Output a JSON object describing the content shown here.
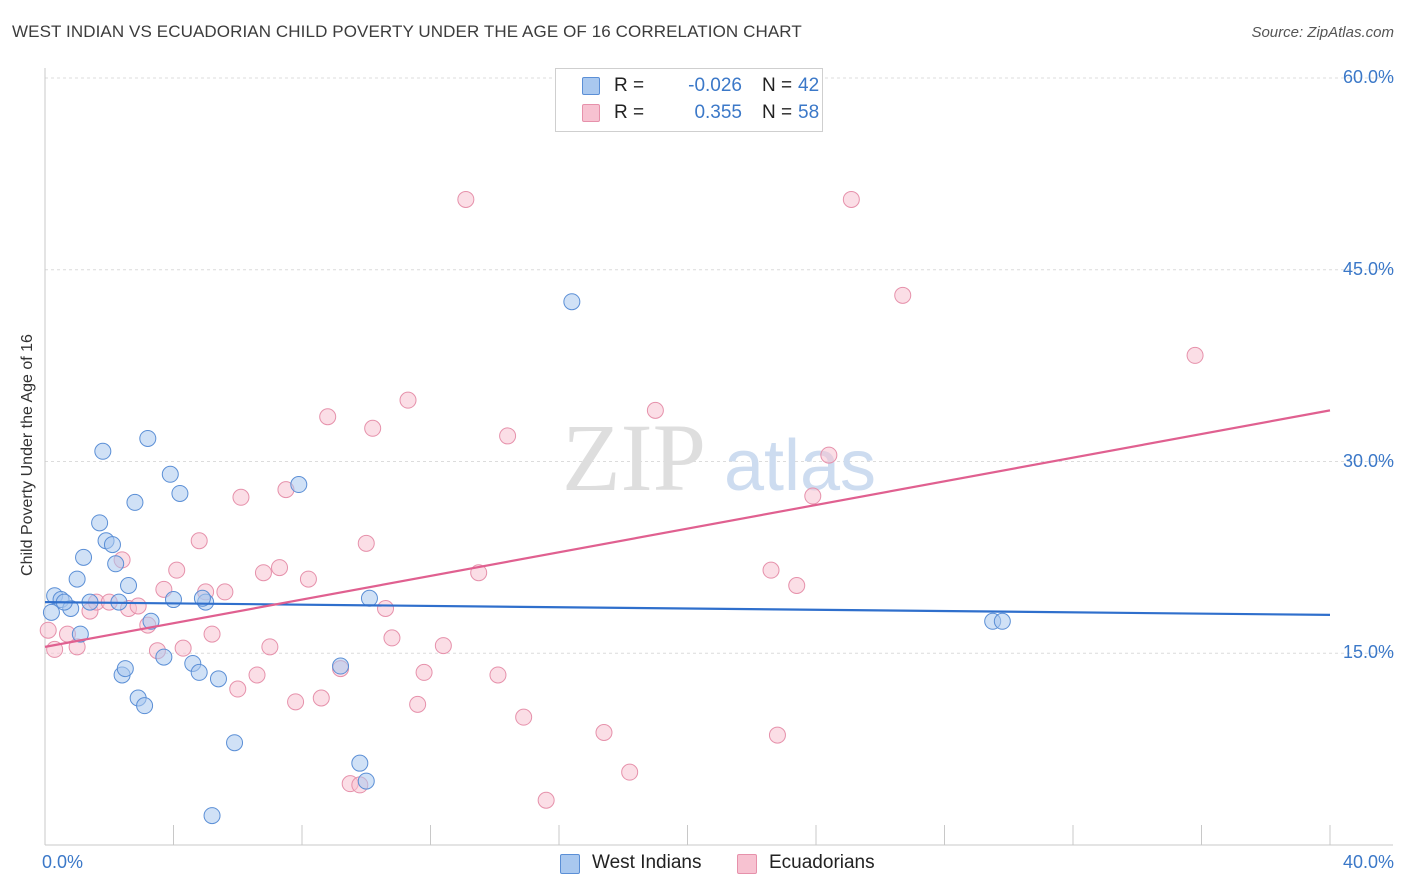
{
  "header": {
    "title": "WEST INDIAN VS ECUADORIAN CHILD POVERTY UNDER THE AGE OF 16 CORRELATION CHART",
    "source": "Source: ZipAtlas.com"
  },
  "colors": {
    "west_indians_fill": "#a9c8ef",
    "west_indians_stroke": "#5b8fd6",
    "west_indians_line": "#2f6fcc",
    "ecuadorians_fill": "#f7c2d1",
    "ecuadorians_stroke": "#e691ab",
    "ecuadorians_line": "#e06090",
    "tick_text": "#3b78c8",
    "grid": "#dcdcdc"
  },
  "watermark": {
    "part1": "ZIP",
    "part2": "atlas"
  },
  "legend": {
    "r_label": "R =",
    "n_label": "N =",
    "rows": [
      {
        "r": "-0.026",
        "n": "42"
      },
      {
        "r": "0.355",
        "n": "58"
      }
    ]
  },
  "bottom_legend": {
    "items": [
      {
        "label": "West Indians"
      },
      {
        "label": "Ecuadorians"
      }
    ]
  },
  "chart_data": {
    "type": "scatter",
    "title": "WEST INDIAN VS ECUADORIAN CHILD POVERTY UNDER THE AGE OF 16 CORRELATION CHART",
    "xlabel": "",
    "ylabel": "Child Poverty Under the Age of 16",
    "xlim": [
      0,
      40
    ],
    "ylim": [
      0,
      60
    ],
    "x_tick_labels": {
      "min": "0.0%",
      "max": "40.0%"
    },
    "y_ticks": [
      {
        "value": 60,
        "label": "60.0%"
      },
      {
        "value": 45,
        "label": "45.0%"
      },
      {
        "value": 30,
        "label": "30.0%"
      },
      {
        "value": 15,
        "label": "15.0%"
      }
    ],
    "grid": true,
    "series": [
      {
        "name": "West Indians",
        "trend": {
          "x": [
            0,
            40
          ],
          "y": [
            19.0,
            18.0
          ]
        },
        "points": [
          [
            0.3,
            19.5
          ],
          [
            0.5,
            19.2
          ],
          [
            0.8,
            18.5
          ],
          [
            1.0,
            20.8
          ],
          [
            1.2,
            22.5
          ],
          [
            1.1,
            16.5
          ],
          [
            1.4,
            19.0
          ],
          [
            1.7,
            25.2
          ],
          [
            1.8,
            30.8
          ],
          [
            1.9,
            23.8
          ],
          [
            2.1,
            23.5
          ],
          [
            2.2,
            22.0
          ],
          [
            2.6,
            20.3
          ],
          [
            2.8,
            26.8
          ],
          [
            3.2,
            31.8
          ],
          [
            3.3,
            17.5
          ],
          [
            3.7,
            14.7
          ],
          [
            3.9,
            29.0
          ],
          [
            4.0,
            19.2
          ],
          [
            4.2,
            27.5
          ],
          [
            4.6,
            14.2
          ],
          [
            4.8,
            13.5
          ],
          [
            5.0,
            19.0
          ],
          [
            5.4,
            13.0
          ],
          [
            2.4,
            13.3
          ],
          [
            2.5,
            13.8
          ],
          [
            2.9,
            11.5
          ],
          [
            3.1,
            10.9
          ],
          [
            5.9,
            8.0
          ],
          [
            5.2,
            2.3
          ],
          [
            7.9,
            28.2
          ],
          [
            9.2,
            14.0
          ],
          [
            10.1,
            19.3
          ],
          [
            9.8,
            6.4
          ],
          [
            10.0,
            5.0
          ],
          [
            16.4,
            42.5
          ],
          [
            29.5,
            17.5
          ],
          [
            29.8,
            17.5
          ],
          [
            0.2,
            18.2
          ],
          [
            0.6,
            19.0
          ],
          [
            4.9,
            19.3
          ],
          [
            2.3,
            19.0
          ]
        ]
      },
      {
        "name": "Ecuadorians",
        "trend": {
          "x": [
            0,
            40
          ],
          "y": [
            15.5,
            34.0
          ]
        },
        "points": [
          [
            0.1,
            16.8
          ],
          [
            0.3,
            15.3
          ],
          [
            0.7,
            16.5
          ],
          [
            1.0,
            15.5
          ],
          [
            1.4,
            18.3
          ],
          [
            1.6,
            19.0
          ],
          [
            2.0,
            19.0
          ],
          [
            2.4,
            22.3
          ],
          [
            2.6,
            18.5
          ],
          [
            2.9,
            18.7
          ],
          [
            3.2,
            17.2
          ],
          [
            3.5,
            15.2
          ],
          [
            3.7,
            20.0
          ],
          [
            4.1,
            21.5
          ],
          [
            4.3,
            15.4
          ],
          [
            4.8,
            23.8
          ],
          [
            5.0,
            19.8
          ],
          [
            5.2,
            16.5
          ],
          [
            5.6,
            19.8
          ],
          [
            6.0,
            12.2
          ],
          [
            6.1,
            27.2
          ],
          [
            6.6,
            13.3
          ],
          [
            6.8,
            21.3
          ],
          [
            7.0,
            15.5
          ],
          [
            7.3,
            21.7
          ],
          [
            7.5,
            27.8
          ],
          [
            7.8,
            11.2
          ],
          [
            8.2,
            20.8
          ],
          [
            8.6,
            11.5
          ],
          [
            8.8,
            33.5
          ],
          [
            9.2,
            13.8
          ],
          [
            9.5,
            4.8
          ],
          [
            9.8,
            4.7
          ],
          [
            10.0,
            23.6
          ],
          [
            10.2,
            32.6
          ],
          [
            10.6,
            18.5
          ],
          [
            10.8,
            16.2
          ],
          [
            11.3,
            34.8
          ],
          [
            11.6,
            11.0
          ],
          [
            11.8,
            13.5
          ],
          [
            12.4,
            15.6
          ],
          [
            13.1,
            50.5
          ],
          [
            13.5,
            21.3
          ],
          [
            14.1,
            13.3
          ],
          [
            14.4,
            32.0
          ],
          [
            14.9,
            10.0
          ],
          [
            15.6,
            3.5
          ],
          [
            17.4,
            8.8
          ],
          [
            18.2,
            5.7
          ],
          [
            19.0,
            34.0
          ],
          [
            22.6,
            21.5
          ],
          [
            22.8,
            8.6
          ],
          [
            23.4,
            20.3
          ],
          [
            23.9,
            27.3
          ],
          [
            24.4,
            30.5
          ],
          [
            25.1,
            50.5
          ],
          [
            26.7,
            43.0
          ],
          [
            35.8,
            38.3
          ]
        ]
      }
    ]
  }
}
